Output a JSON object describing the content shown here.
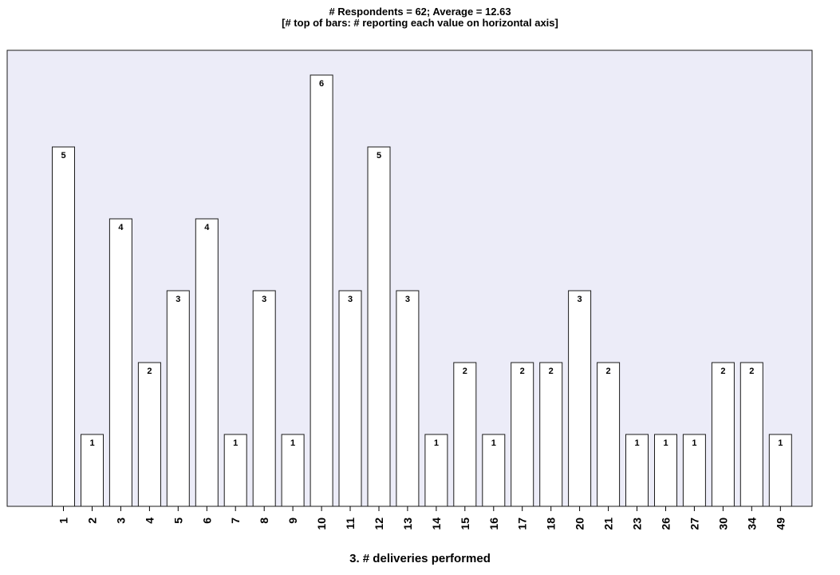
{
  "chart_data": {
    "type": "bar",
    "title": "# Respondents = 62; Average = 12.63",
    "subtitle": "[# top of bars: # reporting each value on horizontal axis]",
    "xlabel": "3. # deliveries performed",
    "ylabel": "",
    "categories": [
      "1",
      "2",
      "3",
      "4",
      "5",
      "6",
      "7",
      "8",
      "9",
      "10",
      "11",
      "12",
      "13",
      "14",
      "15",
      "16",
      "17",
      "18",
      "20",
      "21",
      "23",
      "26",
      "27",
      "30",
      "34",
      "49"
    ],
    "values": [
      5,
      1,
      4,
      2,
      3,
      4,
      1,
      3,
      1,
      6,
      3,
      5,
      3,
      1,
      2,
      1,
      2,
      2,
      3,
      2,
      1,
      1,
      1,
      2,
      2,
      1
    ],
    "ylim": [
      0,
      6
    ],
    "grid": false,
    "colors": {
      "plot_background": "#ececf8",
      "bar_fill": "#ffffff",
      "bar_stroke": "#1a1a1a"
    }
  }
}
